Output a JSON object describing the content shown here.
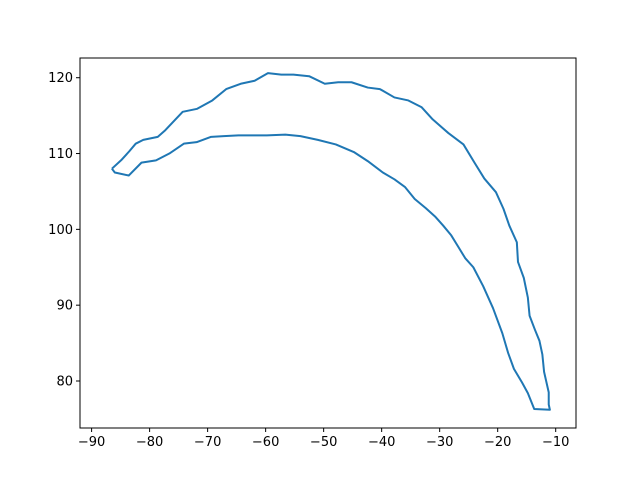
{
  "chart_data": {
    "type": "line",
    "title": "",
    "xlabel": "",
    "ylabel": "",
    "xlim": [
      -92,
      -6.5
    ],
    "ylim": [
      73.8,
      122.6
    ],
    "xticks": [
      -90,
      -80,
      -70,
      -60,
      -50,
      -40,
      -30,
      -20,
      -10
    ],
    "yticks": [
      80,
      90,
      100,
      110,
      120
    ],
    "xtick_labels": [
      "−90",
      "−80",
      "−70",
      "−60",
      "−50",
      "−40",
      "−30",
      "−20",
      "−10"
    ],
    "ytick_labels": [
      "80",
      "90",
      "100",
      "110",
      "120"
    ],
    "grid": false,
    "legend": "none",
    "series_color": "#1f77b4",
    "series": [
      {
        "x": [
          -86.5,
          -84.8,
          -83.5,
          -82.4,
          -81.1,
          -78.6,
          -77.4,
          -74.3,
          -71.8,
          -69.2,
          -66.8,
          -64.3,
          -61.9,
          -59.6,
          -57.3,
          -55.2,
          -52.5,
          -49.8,
          -47.5,
          -45.2,
          -42.4,
          -40.3,
          -37.8,
          -35.4,
          -33.1,
          -31.2,
          -28.5,
          -25.9,
          -24.0,
          -22.3,
          -20.3,
          -19.0,
          -18.0,
          -16.7,
          -16.5,
          -15.5,
          -14.8,
          -14.5,
          -13.6,
          -12.8,
          -12.3,
          -12.0,
          -11.2,
          -11.2,
          -11.0,
          -13.7,
          -14.8,
          -15.8,
          -17.2,
          -18.2,
          -19.2,
          -20.8,
          -22.5,
          -24.2,
          -25.6,
          -26.8,
          -28.0,
          -29.4,
          -30.8,
          -32.4,
          -34.3,
          -36.0,
          -37.8,
          -39.8,
          -42.4,
          -44.8,
          -47.9,
          -51.0,
          -54.0,
          -56.6,
          -59.8,
          -62.1,
          -64.7,
          -67.2,
          -69.4,
          -71.9,
          -74.1,
          -76.6,
          -78.9,
          -81.4,
          -83.6,
          -86.0,
          -86.5
        ],
        "y": [
          108.0,
          109.2,
          110.3,
          111.3,
          111.8,
          112.2,
          113.0,
          115.5,
          115.9,
          117.0,
          118.5,
          119.2,
          119.6,
          120.6,
          120.4,
          120.4,
          120.2,
          119.2,
          119.4,
          119.4,
          118.7,
          118.5,
          117.4,
          117.0,
          116.1,
          114.5,
          112.7,
          111.2,
          108.8,
          106.7,
          104.9,
          102.7,
          100.5,
          98.3,
          95.7,
          93.6,
          91.0,
          88.6,
          86.8,
          85.3,
          83.5,
          81.2,
          78.5,
          76.9,
          76.2,
          76.3,
          78.4,
          79.8,
          81.6,
          83.7,
          86.3,
          89.6,
          92.5,
          95.0,
          96.2,
          97.7,
          99.2,
          100.5,
          101.7,
          102.8,
          104.0,
          105.6,
          106.6,
          107.5,
          109.0,
          110.2,
          111.2,
          111.8,
          112.3,
          112.5,
          112.4,
          112.4,
          112.4,
          112.3,
          112.2,
          111.5,
          111.3,
          110.0,
          109.1,
          108.8,
          107.1,
          107.5,
          108.0
        ]
      }
    ]
  }
}
